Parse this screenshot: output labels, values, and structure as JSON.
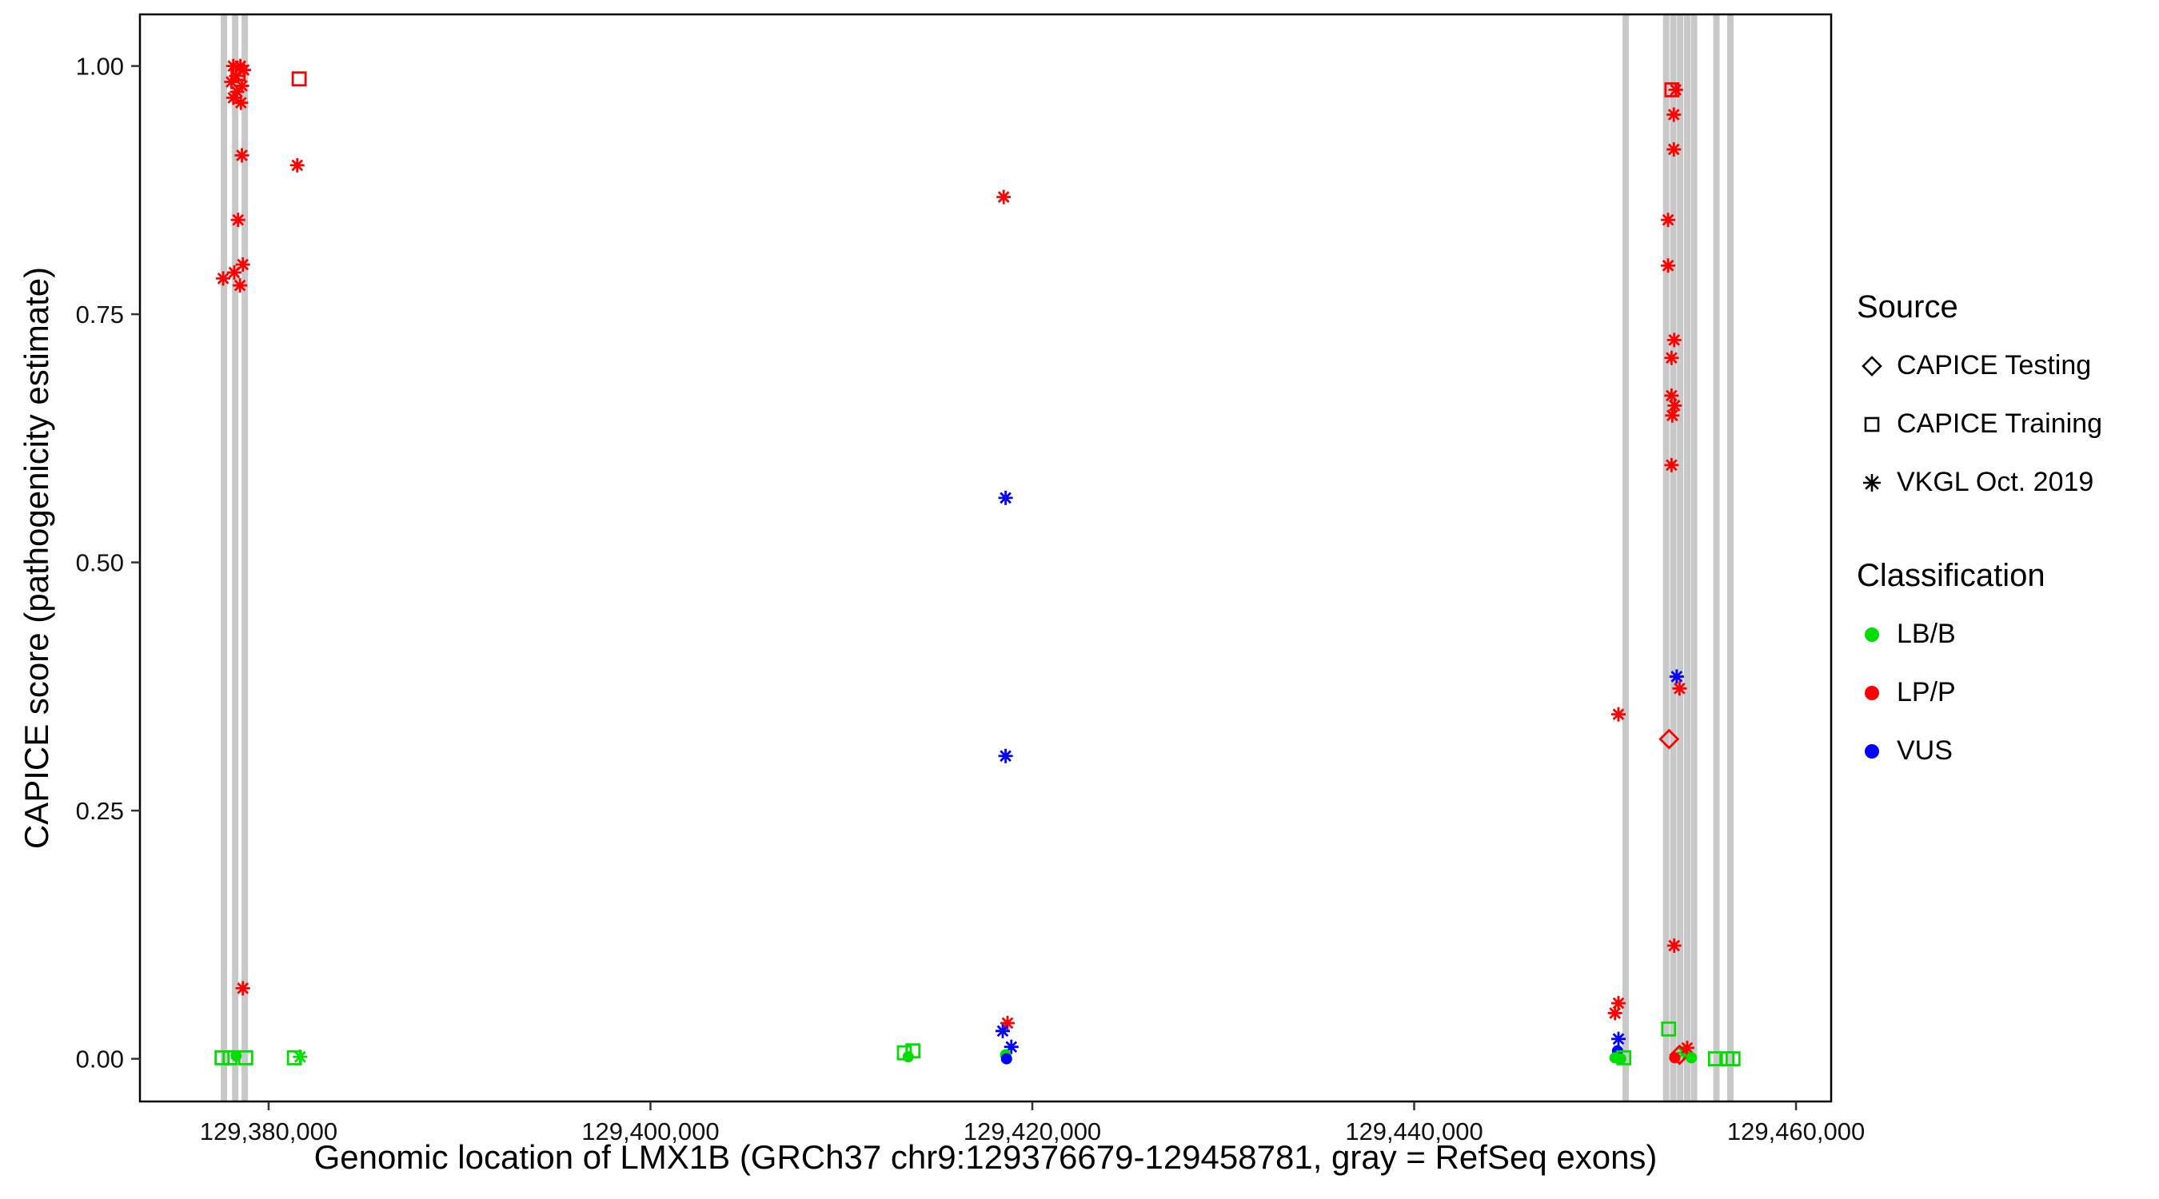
{
  "chart_data": {
    "type": "scatter",
    "xlabel": "Genomic location of LMX1B (GRCh37 chr9:129376679-129458781, gray = RefSeq exons)",
    "ylabel": "CAPICE score (pathogenicity estimate)",
    "xlim": [
      129373260,
      129461840
    ],
    "ylim": [
      -0.043,
      1.052
    ],
    "x_ticks": [
      {
        "value": 129380000,
        "label": "129,380,000"
      },
      {
        "value": 129400000,
        "label": "129,400,000"
      },
      {
        "value": 129420000,
        "label": "129,420,000"
      },
      {
        "value": 129440000,
        "label": "129,440,000"
      },
      {
        "value": 129460000,
        "label": "129,460,000"
      }
    ],
    "y_ticks": [
      {
        "value": 0.0,
        "label": "0.00"
      },
      {
        "value": 0.25,
        "label": "0.25"
      },
      {
        "value": 0.5,
        "label": "0.50"
      },
      {
        "value": 0.75,
        "label": "0.75"
      },
      {
        "value": 1.0,
        "label": "1.00"
      }
    ],
    "exon_color": "#C8C8C8",
    "exons": [
      129377660,
      129378250,
      129378750,
      129451080,
      129453200,
      129453570,
      129453930,
      129454300,
      129454660,
      129455830,
      129456560
    ],
    "class_colors": {
      "LB/B": "#00DD00",
      "LP/P": "#FF0000",
      "VUS": "#0000FF"
    },
    "source_shapes": {
      "CAPICE Testing": "diamond",
      "CAPICE Training": "square",
      "VKGL Oct. 2019": "asterisk"
    },
    "points": [
      {
        "x": 129378150,
        "y": 1.0,
        "shape": "asterisk",
        "class": "LP/P"
      },
      {
        "x": 129378520,
        "y": 1.0,
        "shape": "asterisk",
        "class": "LP/P"
      },
      {
        "x": 129378700,
        "y": 0.996,
        "shape": "asterisk",
        "class": "LP/P"
      },
      {
        "x": 129378300,
        "y": 0.99,
        "shape": "asterisk",
        "class": "LP/P"
      },
      {
        "x": 129378050,
        "y": 0.984,
        "shape": "asterisk",
        "class": "LP/P"
      },
      {
        "x": 129378600,
        "y": 0.98,
        "shape": "asterisk",
        "class": "LP/P"
      },
      {
        "x": 129378350,
        "y": 0.974,
        "shape": "asterisk",
        "class": "LP/P"
      },
      {
        "x": 129378150,
        "y": 0.968,
        "shape": "asterisk",
        "class": "LP/P"
      },
      {
        "x": 129378550,
        "y": 0.963,
        "shape": "asterisk",
        "class": "LP/P"
      },
      {
        "x": 129378400,
        "y": 0.992,
        "shape": "square",
        "class": "LP/P"
      },
      {
        "x": 129381600,
        "y": 0.987,
        "shape": "square",
        "class": "LP/P"
      },
      {
        "x": 129378600,
        "y": 0.91,
        "shape": "asterisk",
        "class": "LP/P"
      },
      {
        "x": 129381500,
        "y": 0.9,
        "shape": "asterisk",
        "class": "LP/P"
      },
      {
        "x": 129378400,
        "y": 0.845,
        "shape": "asterisk",
        "class": "LP/P"
      },
      {
        "x": 129378650,
        "y": 0.8,
        "shape": "asterisk",
        "class": "LP/P"
      },
      {
        "x": 129378200,
        "y": 0.792,
        "shape": "asterisk",
        "class": "LP/P"
      },
      {
        "x": 129377620,
        "y": 0.786,
        "shape": "asterisk",
        "class": "LP/P"
      },
      {
        "x": 129378500,
        "y": 0.779,
        "shape": "asterisk",
        "class": "LP/P"
      },
      {
        "x": 129378650,
        "y": 0.071,
        "shape": "asterisk",
        "class": "LP/P"
      },
      {
        "x": 129377560,
        "y": 0.001,
        "shape": "square",
        "class": "LB/B"
      },
      {
        "x": 129377980,
        "y": 0.001,
        "shape": "square",
        "class": "LB/B"
      },
      {
        "x": 129378300,
        "y": 0.003,
        "shape": "circle",
        "class": "LB/B"
      },
      {
        "x": 129378800,
        "y": 0.001,
        "shape": "square",
        "class": "LB/B"
      },
      {
        "x": 129381350,
        "y": 0.001,
        "shape": "square",
        "class": "LB/B"
      },
      {
        "x": 129381650,
        "y": 0.002,
        "shape": "asterisk",
        "class": "LB/B"
      },
      {
        "x": 129413300,
        "y": 0.006,
        "shape": "square",
        "class": "LB/B"
      },
      {
        "x": 129413750,
        "y": 0.008,
        "shape": "square",
        "class": "LB/B"
      },
      {
        "x": 129413500,
        "y": 0.002,
        "shape": "circle",
        "class": "LB/B"
      },
      {
        "x": 129418500,
        "y": 0.868,
        "shape": "asterisk",
        "class": "LP/P"
      },
      {
        "x": 129418600,
        "y": 0.565,
        "shape": "asterisk",
        "class": "VUS"
      },
      {
        "x": 129418600,
        "y": 0.305,
        "shape": "asterisk",
        "class": "VUS"
      },
      {
        "x": 129418700,
        "y": 0.036,
        "shape": "asterisk",
        "class": "LP/P"
      },
      {
        "x": 129418450,
        "y": 0.028,
        "shape": "asterisk",
        "class": "VUS"
      },
      {
        "x": 129418900,
        "y": 0.012,
        "shape": "asterisk",
        "class": "VUS"
      },
      {
        "x": 129418600,
        "y": 0.004,
        "shape": "circle",
        "class": "LB/B"
      },
      {
        "x": 129418650,
        "y": 0.0,
        "shape": "circle",
        "class": "VUS"
      },
      {
        "x": 129450700,
        "y": 0.347,
        "shape": "asterisk",
        "class": "LP/P"
      },
      {
        "x": 129453350,
        "y": 0.322,
        "shape": "diamond",
        "class": "LP/P"
      },
      {
        "x": 129453500,
        "y": 0.976,
        "shape": "square",
        "class": "LP/P"
      },
      {
        "x": 129453700,
        "y": 0.976,
        "shape": "asterisk",
        "class": "LP/P"
      },
      {
        "x": 129453600,
        "y": 0.951,
        "shape": "asterisk",
        "class": "LP/P"
      },
      {
        "x": 129453600,
        "y": 0.916,
        "shape": "asterisk",
        "class": "LP/P"
      },
      {
        "x": 129453300,
        "y": 0.845,
        "shape": "asterisk",
        "class": "LP/P"
      },
      {
        "x": 129453300,
        "y": 0.799,
        "shape": "asterisk",
        "class": "LP/P"
      },
      {
        "x": 129453620,
        "y": 0.724,
        "shape": "asterisk",
        "class": "LP/P"
      },
      {
        "x": 129453480,
        "y": 0.706,
        "shape": "asterisk",
        "class": "LP/P"
      },
      {
        "x": 129453480,
        "y": 0.668,
        "shape": "asterisk",
        "class": "LP/P"
      },
      {
        "x": 129453640,
        "y": 0.658,
        "shape": "asterisk",
        "class": "LP/P"
      },
      {
        "x": 129453520,
        "y": 0.648,
        "shape": "asterisk",
        "class": "LP/P"
      },
      {
        "x": 129453480,
        "y": 0.598,
        "shape": "asterisk",
        "class": "LP/P"
      },
      {
        "x": 129453750,
        "y": 0.385,
        "shape": "asterisk",
        "class": "VUS"
      },
      {
        "x": 129453900,
        "y": 0.373,
        "shape": "asterisk",
        "class": "LP/P"
      },
      {
        "x": 129453620,
        "y": 0.114,
        "shape": "asterisk",
        "class": "LP/P"
      },
      {
        "x": 129450700,
        "y": 0.056,
        "shape": "asterisk",
        "class": "LP/P"
      },
      {
        "x": 129450520,
        "y": 0.046,
        "shape": "asterisk",
        "class": "LP/P"
      },
      {
        "x": 129450700,
        "y": 0.02,
        "shape": "asterisk",
        "class": "VUS"
      },
      {
        "x": 129453330,
        "y": 0.03,
        "shape": "square",
        "class": "LB/B"
      },
      {
        "x": 129450650,
        "y": 0.008,
        "shape": "circle",
        "class": "VUS"
      },
      {
        "x": 129450520,
        "y": 0.001,
        "shape": "circle",
        "class": "LB/B"
      },
      {
        "x": 129450820,
        "y": 0.0,
        "shape": "circle",
        "class": "LB/B"
      },
      {
        "x": 129450980,
        "y": 0.001,
        "shape": "square",
        "class": "LB/B"
      },
      {
        "x": 129454120,
        "y": 0.006,
        "shape": "asterisk",
        "class": "LB/B"
      },
      {
        "x": 129454300,
        "y": 0.011,
        "shape": "asterisk",
        "class": "LP/P"
      },
      {
        "x": 129453900,
        "y": 0.004,
        "shape": "diamond",
        "class": "LP/P"
      },
      {
        "x": 129453650,
        "y": 0.001,
        "shape": "circle",
        "class": "LP/P"
      },
      {
        "x": 129454520,
        "y": 0.001,
        "shape": "circle",
        "class": "LB/B"
      },
      {
        "x": 129455780,
        "y": 0.0,
        "shape": "square",
        "class": "LB/B"
      },
      {
        "x": 129456380,
        "y": 0.0,
        "shape": "square",
        "class": "LB/B"
      },
      {
        "x": 129456700,
        "y": 0.0,
        "shape": "square",
        "class": "LB/B"
      }
    ]
  },
  "legend": {
    "source": {
      "title": "Source",
      "items": [
        {
          "label": "CAPICE Testing",
          "shape": "diamond"
        },
        {
          "label": "CAPICE Training",
          "shape": "square"
        },
        {
          "label": "VKGL Oct. 2019",
          "shape": "asterisk"
        }
      ]
    },
    "classification": {
      "title": "Classification",
      "items": [
        {
          "label": "LB/B"
        },
        {
          "label": "LP/P"
        },
        {
          "label": "VUS"
        }
      ]
    }
  }
}
